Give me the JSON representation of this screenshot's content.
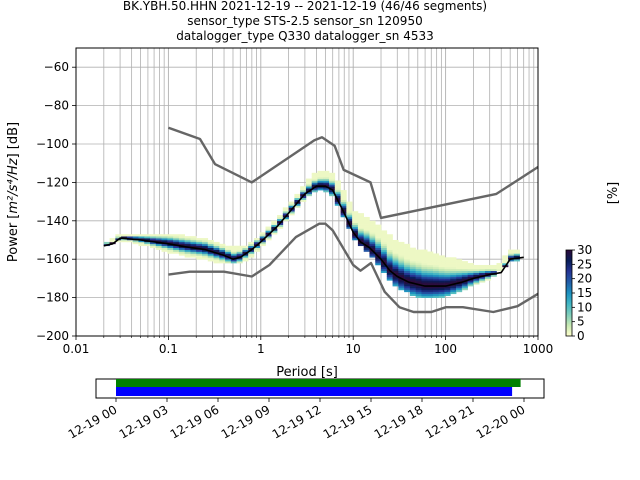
{
  "title": {
    "line1": "BK.YBH.50.HHN   2021-12-19 -- 2021-12-19  (46/46 segments)",
    "line2": "sensor_type STS-2.5 sensor_sn 120950",
    "line3": "datalogger_type Q330 datalogger_sn 4533"
  },
  "chart_data": {
    "type": "heatmap",
    "xlabel": "Period [s]",
    "ylabel_prefix": "Power [",
    "ylabel_math": "m²/s⁴/Hz",
    "ylabel_suffix": "] [dB]",
    "x_scale": "log",
    "xlim": [
      0.01,
      1000
    ],
    "ylim": [
      -200,
      -50
    ],
    "x_ticks": [
      {
        "v": 0.01,
        "label": "0.01"
      },
      {
        "v": 0.1,
        "label": "0.1"
      },
      {
        "v": 1,
        "label": "1"
      },
      {
        "v": 10,
        "label": "10"
      },
      {
        "v": 100,
        "label": "100"
      },
      {
        "v": 1000,
        "label": "1000"
      }
    ],
    "y_ticks": [
      {
        "v": -60,
        "label": "−60"
      },
      {
        "v": -80,
        "label": "−80"
      },
      {
        "v": -100,
        "label": "−100"
      },
      {
        "v": -120,
        "label": "−120"
      },
      {
        "v": -140,
        "label": "−140"
      },
      {
        "v": -160,
        "label": "−160"
      },
      {
        "v": -180,
        "label": "−180"
      },
      {
        "v": -200,
        "label": "−200"
      }
    ],
    "grid": true,
    "colorbar": {
      "label": "[%]",
      "range": [
        0,
        30
      ],
      "ticks": [
        {
          "v": 0,
          "label": "0"
        },
        {
          "v": 5,
          "label": "5"
        },
        {
          "v": 10,
          "label": "10"
        },
        {
          "v": 15,
          "label": "15"
        },
        {
          "v": 20,
          "label": "20"
        },
        {
          "v": 25,
          "label": "25"
        },
        {
          "v": 30,
          "label": "30"
        }
      ],
      "colors": [
        "#ffffcc",
        "#c7e9b4",
        "#7fcdbb",
        "#41b6c4",
        "#1d91c0",
        "#225ea8",
        "#253494",
        "#081d58",
        "#2d0a3a"
      ]
    },
    "nlnm": {
      "name": "NLNM",
      "color": "#666666",
      "points": [
        [
          0.1,
          -168
        ],
        [
          0.17,
          -166.5
        ],
        [
          0.4,
          -166.5
        ],
        [
          0.8,
          -169
        ],
        [
          1.24,
          -163
        ],
        [
          2.4,
          -148.5
        ],
        [
          4.3,
          -141.5
        ],
        [
          5,
          -141.5
        ],
        [
          6,
          -145
        ],
        [
          10,
          -163
        ],
        [
          12,
          -166
        ],
        [
          15.6,
          -162
        ],
        [
          21.9,
          -177
        ],
        [
          31.6,
          -185
        ],
        [
          45,
          -187.5
        ],
        [
          70,
          -187.5
        ],
        [
          101,
          -185
        ],
        [
          154,
          -185
        ],
        [
          328,
          -187.5
        ],
        [
          600,
          -184.5
        ],
        [
          1000,
          -178
        ]
      ]
    },
    "nhnm": {
      "name": "NHNM",
      "color": "#666666",
      "points": [
        [
          0.1,
          -91.5
        ],
        [
          0.22,
          -97.4
        ],
        [
          0.32,
          -110.5
        ],
        [
          0.8,
          -120
        ],
        [
          3.8,
          -98
        ],
        [
          4.6,
          -96.5
        ],
        [
          6.3,
          -101
        ],
        [
          7.9,
          -113.5
        ],
        [
          15.4,
          -120
        ],
        [
          20,
          -138.5
        ],
        [
          354.8,
          -126
        ],
        [
          1000,
          -112
        ]
      ]
    },
    "mode_curve": {
      "color": "#000000",
      "points": [
        [
          0.02,
          -153
        ],
        [
          0.025,
          -152
        ],
        [
          0.03,
          -149
        ],
        [
          0.05,
          -150
        ],
        [
          0.1,
          -152
        ],
        [
          0.15,
          -153.5
        ],
        [
          0.25,
          -155
        ],
        [
          0.4,
          -158
        ],
        [
          0.5,
          -160
        ],
        [
          0.6,
          -159
        ],
        [
          0.8,
          -155
        ],
        [
          1,
          -151
        ],
        [
          1.5,
          -143
        ],
        [
          2,
          -136
        ],
        [
          3,
          -126
        ],
        [
          4,
          -122
        ],
        [
          5,
          -122
        ],
        [
          6,
          -124
        ],
        [
          8,
          -136
        ],
        [
          10,
          -146
        ],
        [
          12,
          -151
        ],
        [
          15,
          -154
        ],
        [
          20,
          -160
        ],
        [
          25,
          -166
        ],
        [
          30,
          -169
        ],
        [
          40,
          -172
        ],
        [
          60,
          -174
        ],
        [
          100,
          -174
        ],
        [
          150,
          -172
        ],
        [
          200,
          -170
        ],
        [
          300,
          -168
        ],
        [
          400,
          -167
        ],
        [
          500,
          -160
        ],
        [
          700,
          -159
        ]
      ]
    },
    "psd_band": [
      [
        0.02,
        -153,
        -153
      ],
      [
        0.03,
        -150,
        -148
      ],
      [
        0.05,
        -152,
        -148
      ],
      [
        0.1,
        -156,
        -148
      ],
      [
        0.15,
        -158,
        -149
      ],
      [
        0.25,
        -160,
        -151
      ],
      [
        0.4,
        -162,
        -154
      ],
      [
        0.5,
        -162,
        -155
      ],
      [
        0.7,
        -160,
        -154
      ],
      [
        1,
        -154,
        -149
      ],
      [
        1.5,
        -145,
        -140
      ],
      [
        2,
        -138,
        -133
      ],
      [
        3,
        -128,
        -122
      ],
      [
        4,
        -124,
        -116
      ],
      [
        5,
        -124,
        -115
      ],
      [
        6,
        -127,
        -117
      ],
      [
        8,
        -138,
        -126
      ],
      [
        10,
        -148,
        -136
      ],
      [
        15,
        -157,
        -140
      ],
      [
        20,
        -165,
        -145
      ],
      [
        30,
        -175,
        -152
      ],
      [
        50,
        -179,
        -156
      ],
      [
        70,
        -180,
        -158
      ],
      [
        100,
        -179,
        -160
      ],
      [
        150,
        -176,
        -162
      ],
      [
        200,
        -173,
        -164
      ],
      [
        300,
        -170,
        -165
      ],
      [
        400,
        -165,
        -163
      ],
      [
        500,
        -161,
        -156
      ],
      [
        700,
        -161,
        -156
      ]
    ]
  },
  "timeline": {
    "ticks": [
      "12-19 00",
      "12-19 03",
      "12-19 06",
      "12-19 09",
      "12-19 12",
      "12-19 15",
      "12-19 18",
      "12-19 21",
      "12-20 00"
    ],
    "data_bar": {
      "start_hours": 0,
      "end_hours": 23.8,
      "color": "#008000"
    },
    "psd_bar": {
      "start_hours": 0,
      "end_hours": 23.3,
      "color": "#0000ff"
    }
  }
}
